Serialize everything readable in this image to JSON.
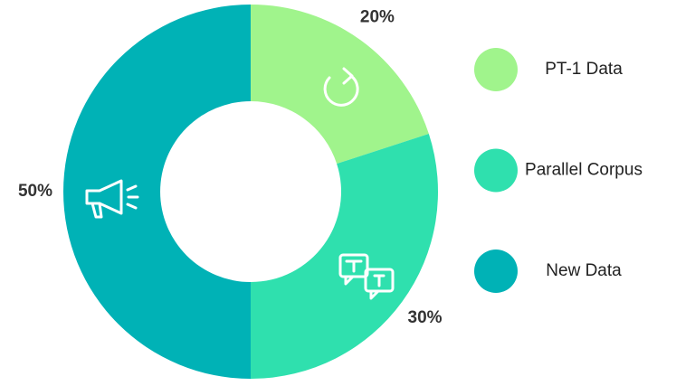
{
  "chart_data": {
    "type": "donut",
    "categories": [
      "PT-1 Data",
      "Parallel Corpus",
      "New Data"
    ],
    "values": [
      20,
      30,
      50
    ],
    "value_labels": [
      "20%",
      "30%",
      "50%"
    ],
    "colors": [
      "#a0f48c",
      "#2fe0ae",
      "#00b2b6"
    ]
  }
}
